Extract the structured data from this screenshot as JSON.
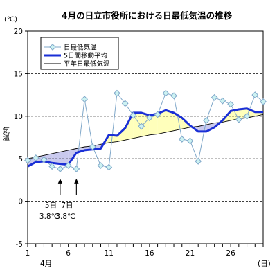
{
  "chart_data": {
    "type": "line",
    "title": "4月の日立市役所における日最低気温の推移",
    "unit_label": "(℃)",
    "ylabel": "気温",
    "xlabel": "(日)",
    "month_label": "4月",
    "ylim": [
      -5,
      20
    ],
    "yticks": [
      -5,
      0,
      5,
      10,
      15,
      20
    ],
    "xlim": [
      1,
      30
    ],
    "xticks": [
      1,
      6,
      11,
      16,
      21,
      26
    ],
    "grid": "dashed horizontal",
    "legend_placement": "top-left",
    "days": [
      1,
      2,
      3,
      4,
      5,
      6,
      7,
      8,
      9,
      10,
      11,
      12,
      13,
      14,
      15,
      16,
      17,
      18,
      19,
      20,
      21,
      22,
      23,
      24,
      25,
      26,
      27,
      28,
      29,
      30
    ],
    "series": [
      {
        "name": "日最低気温",
        "style": "line-markers",
        "color": "#7fa7c9",
        "marker_fill": "#ccf2f2",
        "values": [
          4.8,
          5.1,
          4.9,
          4.1,
          3.8,
          4.2,
          3.8,
          12.0,
          6.4,
          4.2,
          4.0,
          12.7,
          11.5,
          10.1,
          8.8,
          9.8,
          10.2,
          12.7,
          12.4,
          7.3,
          7.1,
          4.7,
          9.5,
          12.2,
          11.8,
          11.4,
          9.6,
          10.0,
          12.5,
          11.7
        ]
      },
      {
        "name": "5日間移動平均",
        "style": "line",
        "color": "#1a2fd6",
        "values": [
          4.1,
          4.6,
          4.7,
          4.5,
          4.4,
          4.3,
          5.7,
          6.0,
          6.1,
          6.2,
          7.8,
          7.7,
          8.6,
          10.4,
          10.4,
          10.1,
          10.3,
          10.7,
          10.4,
          9.8,
          8.9,
          8.2,
          8.2,
          8.7,
          9.5,
          10.6,
          10.8,
          10.9,
          10.5,
          10.5
        ]
      },
      {
        "name": "平年日最低気温",
        "style": "line",
        "color": "#000000",
        "values": [
          5.0,
          5.2,
          5.4,
          5.6,
          5.8,
          6.0,
          6.2,
          6.4,
          6.5,
          6.7,
          6.9,
          7.0,
          7.2,
          7.4,
          7.6,
          7.8,
          7.9,
          8.1,
          8.3,
          8.5,
          8.7,
          8.8,
          9.0,
          9.2,
          9.3,
          9.5,
          9.7,
          9.8,
          10.0,
          10.2
        ]
      }
    ],
    "fill_above_normal_color": "#ffffbb",
    "fill_below_normal_color": "#c9c9ee",
    "annotations": [
      {
        "day": 5,
        "value": 3.8,
        "label": "5日",
        "sublabel": "3.8℃"
      },
      {
        "day": 7,
        "value": 3.8,
        "label": "7日",
        "sublabel": "3.8℃"
      }
    ]
  }
}
